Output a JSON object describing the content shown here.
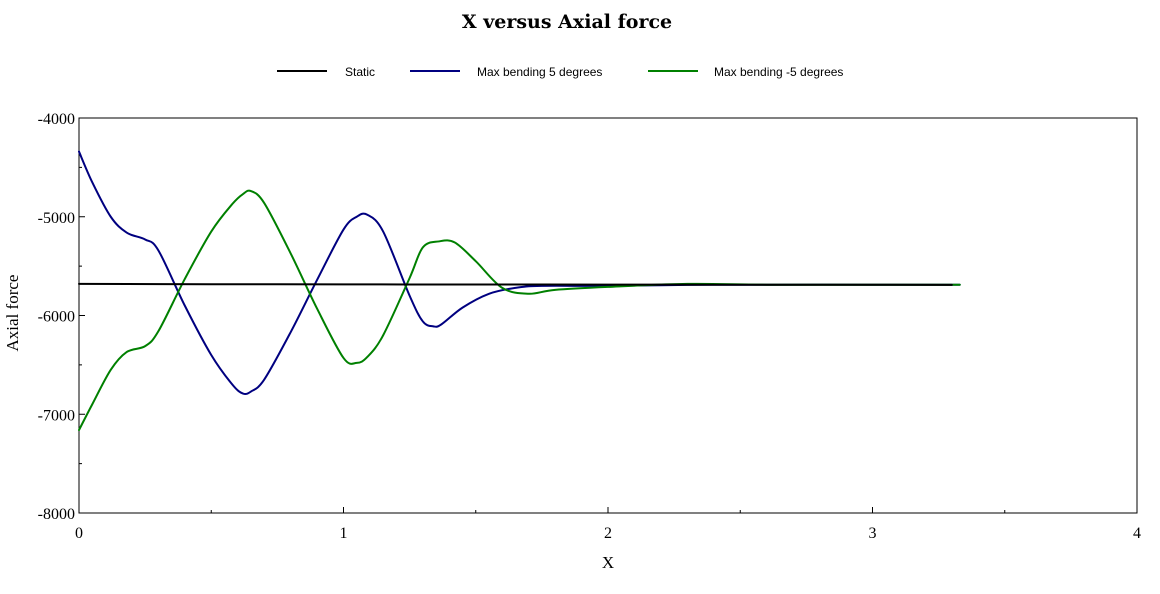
{
  "chart_data": {
    "type": "line",
    "title": "X   versus   Axial force",
    "xlabel": "X",
    "ylabel": "Axial force",
    "xlim": [
      0,
      4
    ],
    "ylim": [
      -8000,
      -4000
    ],
    "x_ticks": [
      "0",
      "1",
      "2",
      "3",
      "4"
    ],
    "y_ticks": [
      "-4000",
      "-5000",
      "-6000",
      "-7000",
      "-8000"
    ],
    "grid": false,
    "legend_position": "top",
    "series": [
      {
        "name": "Static",
        "color": "#000000",
        "x": [
          0,
          0.5,
          1,
          1.5,
          2,
          2.5,
          3,
          3.3
        ],
        "y": [
          -5680,
          -5683,
          -5685,
          -5686,
          -5687,
          -5688,
          -5689,
          -5690
        ]
      },
      {
        "name": "Max bending 5 degrees",
        "color": "#000080",
        "x": [
          0,
          0.05,
          0.12,
          0.18,
          0.25,
          0.3,
          0.4,
          0.5,
          0.58,
          0.62,
          0.65,
          0.7,
          0.8,
          0.9,
          1.0,
          1.05,
          1.09,
          1.15,
          1.25,
          1.3,
          1.34,
          1.37,
          1.45,
          1.55,
          1.65,
          1.75,
          2.0,
          2.3,
          2.6,
          3.0,
          3.33
        ],
        "y": [
          -4340,
          -4650,
          -5000,
          -5160,
          -5230,
          -5340,
          -5900,
          -6400,
          -6700,
          -6790,
          -6770,
          -6650,
          -6170,
          -5640,
          -5130,
          -5000,
          -4980,
          -5150,
          -5800,
          -6060,
          -6110,
          -6090,
          -5920,
          -5780,
          -5720,
          -5700,
          -5700,
          -5690,
          -5688,
          -5688,
          -5688
        ]
      },
      {
        "name": "Max bending -5 degrees",
        "color": "#008000",
        "x": [
          0,
          0.05,
          0.12,
          0.18,
          0.25,
          0.3,
          0.4,
          0.5,
          0.58,
          0.62,
          0.65,
          0.7,
          0.8,
          0.9,
          1.0,
          1.05,
          1.09,
          1.15,
          1.25,
          1.3,
          1.36,
          1.42,
          1.5,
          1.6,
          1.7,
          1.8,
          2.0,
          2.3,
          2.6,
          3.0,
          3.33
        ],
        "y": [
          -7160,
          -6900,
          -6550,
          -6370,
          -6310,
          -6160,
          -5630,
          -5150,
          -4870,
          -4770,
          -4740,
          -4860,
          -5370,
          -5930,
          -6430,
          -6480,
          -6420,
          -6200,
          -5620,
          -5310,
          -5250,
          -5260,
          -5450,
          -5720,
          -5780,
          -5740,
          -5710,
          -5680,
          -5688,
          -5688,
          -5688
        ]
      }
    ]
  }
}
